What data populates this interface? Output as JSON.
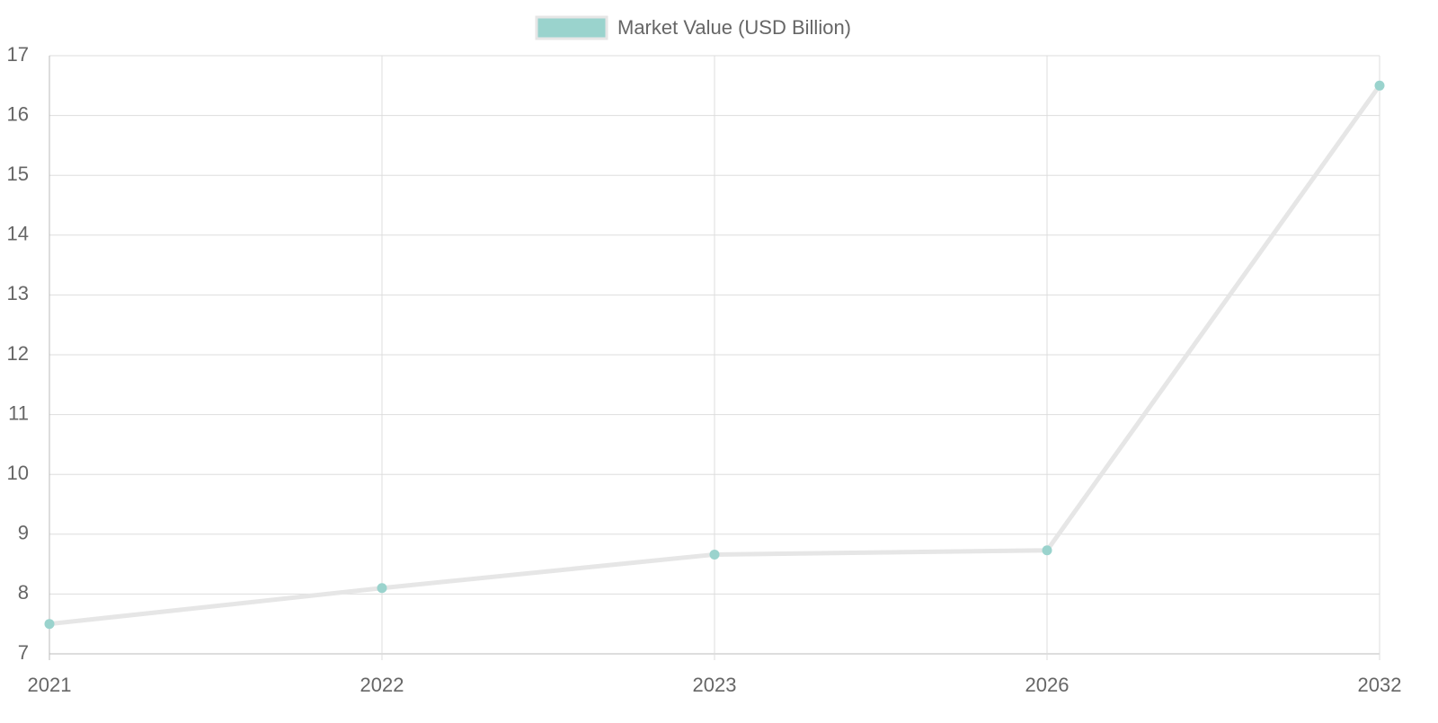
{
  "chart_data": {
    "type": "line",
    "categories": [
      "2021",
      "2022",
      "2023",
      "2026",
      "2032"
    ],
    "series": [
      {
        "name": "Market Value (USD Billion)",
        "color": "#9ad3cd",
        "line_color": "#e6e6e6",
        "values": [
          7.5,
          8.1,
          8.66,
          8.73,
          16.5
        ]
      }
    ],
    "ylim": [
      7,
      17
    ],
    "yticks": [
      7,
      8,
      9,
      10,
      11,
      12,
      13,
      14,
      15,
      16,
      17
    ],
    "grid": true,
    "legend": "top"
  }
}
